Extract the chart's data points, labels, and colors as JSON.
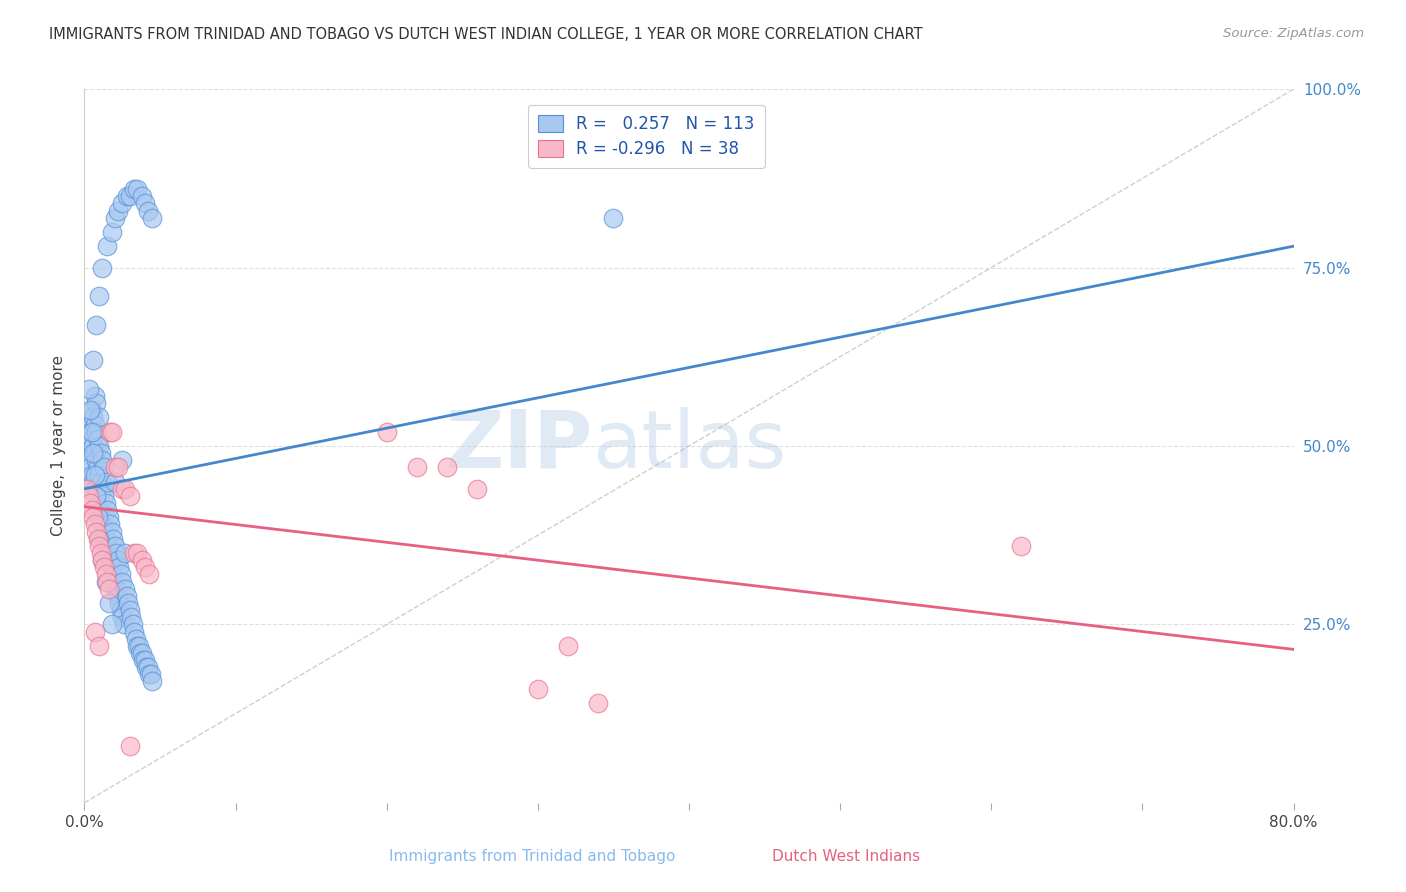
{
  "title": "IMMIGRANTS FROM TRINIDAD AND TOBAGO VS DUTCH WEST INDIAN COLLEGE, 1 YEAR OR MORE CORRELATION CHART",
  "source": "Source: ZipAtlas.com",
  "xlabel_blue": "Immigrants from Trinidad and Tobago",
  "xlabel_pink": "Dutch West Indians",
  "ylabel": "College, 1 year or more",
  "x_min": 0.0,
  "x_max": 0.8,
  "y_min": 0.0,
  "y_max": 1.0,
  "x_ticks": [
    0.0,
    0.1,
    0.2,
    0.3,
    0.4,
    0.5,
    0.6,
    0.7,
    0.8
  ],
  "x_tick_labels": [
    "0.0%",
    "",
    "",
    "",
    "",
    "",
    "",
    "",
    "80.0%"
  ],
  "y_ticks_right": [
    0.0,
    0.25,
    0.5,
    0.75,
    1.0
  ],
  "y_tick_labels_right": [
    "",
    "25.0%",
    "50.0%",
    "75.0%",
    "100.0%"
  ],
  "blue_R": 0.257,
  "blue_N": 113,
  "pink_R": -0.296,
  "pink_N": 38,
  "blue_color": "#A8C8F0",
  "pink_color": "#F8B8C8",
  "blue_edge_color": "#5590D8",
  "pink_edge_color": "#E87090",
  "blue_line_color": "#4488CC",
  "pink_line_color": "#E86080",
  "legend_text_color": "#2255AA",
  "grid_color": "#DDDDDD",
  "background_color": "#FFFFFF",
  "watermark_zip": "ZIP",
  "watermark_atlas": "atlas",
  "blue_scatter_x": [
    0.002,
    0.003,
    0.003,
    0.004,
    0.004,
    0.005,
    0.005,
    0.005,
    0.006,
    0.006,
    0.006,
    0.007,
    0.007,
    0.007,
    0.007,
    0.008,
    0.008,
    0.008,
    0.008,
    0.009,
    0.009,
    0.009,
    0.01,
    0.01,
    0.01,
    0.01,
    0.011,
    0.011,
    0.011,
    0.012,
    0.012,
    0.012,
    0.013,
    0.013,
    0.013,
    0.014,
    0.014,
    0.015,
    0.015,
    0.015,
    0.016,
    0.016,
    0.017,
    0.017,
    0.018,
    0.018,
    0.019,
    0.019,
    0.02,
    0.02,
    0.021,
    0.021,
    0.022,
    0.022,
    0.023,
    0.023,
    0.024,
    0.024,
    0.025,
    0.025,
    0.026,
    0.027,
    0.027,
    0.028,
    0.029,
    0.03,
    0.031,
    0.032,
    0.033,
    0.034,
    0.035,
    0.036,
    0.037,
    0.038,
    0.039,
    0.04,
    0.041,
    0.042,
    0.043,
    0.044,
    0.045,
    0.006,
    0.008,
    0.01,
    0.012,
    0.015,
    0.018,
    0.02,
    0.022,
    0.025,
    0.028,
    0.03,
    0.033,
    0.035,
    0.038,
    0.04,
    0.042,
    0.045,
    0.003,
    0.004,
    0.005,
    0.006,
    0.007,
    0.008,
    0.009,
    0.01,
    0.012,
    0.014,
    0.016,
    0.018,
    0.35,
    0.02,
    0.025
  ],
  "blue_scatter_y": [
    0.5,
    0.48,
    0.53,
    0.47,
    0.52,
    0.46,
    0.51,
    0.55,
    0.45,
    0.5,
    0.54,
    0.44,
    0.49,
    0.53,
    0.57,
    0.43,
    0.48,
    0.52,
    0.56,
    0.42,
    0.47,
    0.51,
    0.41,
    0.46,
    0.5,
    0.54,
    0.4,
    0.45,
    0.49,
    0.39,
    0.44,
    0.48,
    0.38,
    0.43,
    0.47,
    0.37,
    0.42,
    0.36,
    0.41,
    0.45,
    0.35,
    0.4,
    0.34,
    0.39,
    0.33,
    0.38,
    0.32,
    0.37,
    0.31,
    0.36,
    0.3,
    0.35,
    0.29,
    0.34,
    0.28,
    0.33,
    0.27,
    0.32,
    0.26,
    0.31,
    0.25,
    0.3,
    0.35,
    0.29,
    0.28,
    0.27,
    0.26,
    0.25,
    0.24,
    0.23,
    0.22,
    0.22,
    0.21,
    0.21,
    0.2,
    0.2,
    0.19,
    0.19,
    0.18,
    0.18,
    0.17,
    0.62,
    0.67,
    0.71,
    0.75,
    0.78,
    0.8,
    0.82,
    0.83,
    0.84,
    0.85,
    0.85,
    0.86,
    0.86,
    0.85,
    0.84,
    0.83,
    0.82,
    0.58,
    0.55,
    0.52,
    0.49,
    0.46,
    0.43,
    0.4,
    0.37,
    0.34,
    0.31,
    0.28,
    0.25,
    0.82,
    0.45,
    0.48
  ],
  "pink_scatter_x": [
    0.002,
    0.003,
    0.004,
    0.005,
    0.006,
    0.007,
    0.008,
    0.009,
    0.01,
    0.011,
    0.012,
    0.013,
    0.014,
    0.015,
    0.016,
    0.017,
    0.018,
    0.02,
    0.022,
    0.025,
    0.027,
    0.03,
    0.033,
    0.035,
    0.038,
    0.04,
    0.043,
    0.2,
    0.22,
    0.24,
    0.26,
    0.3,
    0.32,
    0.34,
    0.62,
    0.007,
    0.01,
    0.03
  ],
  "pink_scatter_y": [
    0.44,
    0.43,
    0.42,
    0.41,
    0.4,
    0.39,
    0.38,
    0.37,
    0.36,
    0.35,
    0.34,
    0.33,
    0.32,
    0.31,
    0.3,
    0.52,
    0.52,
    0.47,
    0.47,
    0.44,
    0.44,
    0.43,
    0.35,
    0.35,
    0.34,
    0.33,
    0.32,
    0.52,
    0.47,
    0.47,
    0.44,
    0.16,
    0.22,
    0.14,
    0.36,
    0.24,
    0.22,
    0.08
  ],
  "blue_trend_x": [
    0.0,
    0.8
  ],
  "blue_trend_y": [
    0.44,
    0.78
  ],
  "pink_trend_x": [
    0.0,
    0.8
  ],
  "pink_trend_y": [
    0.415,
    0.215
  ],
  "ref_line_x": [
    0.0,
    0.8
  ],
  "ref_line_y": [
    0.0,
    1.0
  ]
}
